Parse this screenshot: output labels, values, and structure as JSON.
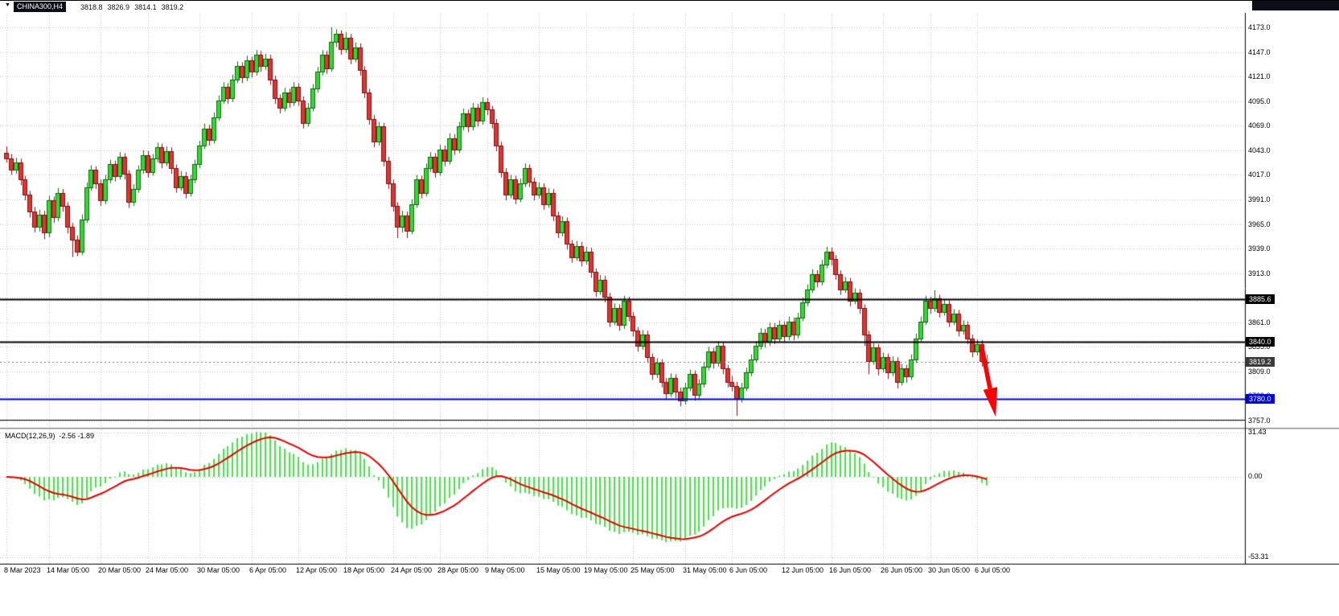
{
  "header": {
    "symbol": "CHINA300,H4",
    "open": "3818.8",
    "high": "3826.9",
    "low": "3814.1",
    "close": "3819.2"
  },
  "colors": {
    "bull": "#33d833",
    "bull_border": "#156415",
    "bear": "#df3434",
    "bear_border": "#801111",
    "grid": "#c9c9c9",
    "hist": "#44e544",
    "signal": "#e30000",
    "arrow": "#ff0000",
    "blue_line": "#0000d8",
    "black_line": "#000000",
    "bid_line": "#777777",
    "bid_badge": "#3a3a3a"
  },
  "chart_data": {
    "type": "candlestick",
    "symbol": "CHINA300",
    "timeframe": "H4",
    "title": "CHINA300,H4 3818.8 3826.9 3814.1 3819.2",
    "ylim": [
      3748,
      4188
    ],
    "price_axis": {
      "labels": [
        "4173.0",
        "4147.0",
        "4121.0",
        "4095.0",
        "4069.0",
        "4043.0",
        "4017.0",
        "3991.0",
        "3965.0",
        "3939.0",
        "3913.0",
        "3887.0",
        "3861.0",
        "3835.0",
        "3809.0",
        "3783.0",
        "3757.0"
      ]
    },
    "x_ticks": [
      {
        "i": 0,
        "label": "8 Mar 2023"
      },
      {
        "i": 9,
        "label": "14 Mar 05:00"
      },
      {
        "i": 20,
        "label": "20 Mar 05:00"
      },
      {
        "i": 30,
        "label": "24 Mar 05:00"
      },
      {
        "i": 41,
        "label": "30 Mar 05:00"
      },
      {
        "i": 52,
        "label": "6 Apr 05:00"
      },
      {
        "i": 62,
        "label": "12 Apr 05:00"
      },
      {
        "i": 72,
        "label": "18 Apr 05:00"
      },
      {
        "i": 82,
        "label": "24 Apr 05:00"
      },
      {
        "i": 92,
        "label": "28 Apr 05:00"
      },
      {
        "i": 102,
        "label": "9 May 05:00"
      },
      {
        "i": 113,
        "label": "15 May 05:00"
      },
      {
        "i": 123,
        "label": "19 May 05:00"
      },
      {
        "i": 133,
        "label": "25 May 05:00"
      },
      {
        "i": 144,
        "label": "31 May 05:00"
      },
      {
        "i": 154,
        "label": "6 Jun 05:00"
      },
      {
        "i": 165,
        "label": "12 Jun 05:00"
      },
      {
        "i": 175,
        "label": "16 Jun 05:00"
      },
      {
        "i": 186,
        "label": "26 Jun 05:00"
      },
      {
        "i": 196,
        "label": "30 Jun 05:00"
      },
      {
        "i": 206,
        "label": "6 Jul 05:00"
      }
    ],
    "hlines": [
      {
        "price": 3885.6,
        "label": "3885.6",
        "color": "#000000",
        "width": 2,
        "style": "solid",
        "badge_bg": "#000000"
      },
      {
        "price": 3840.0,
        "label": "3840.0",
        "color": "#000000",
        "width": 2,
        "style": "solid",
        "badge_bg": "#000000"
      },
      {
        "price": 3819.2,
        "label": "3819.2",
        "color": "#777777",
        "width": 1,
        "style": "dashed",
        "badge_bg": "#3a3a3a"
      },
      {
        "price": 3780.0,
        "label": "3780.0",
        "color": "#0000d8",
        "width": 2,
        "style": "solid",
        "badge_bg": "#0000d8"
      },
      {
        "price": 3758.0,
        "label": "",
        "color": "#000000",
        "width": 1,
        "style": "solid",
        "badge_bg": ""
      }
    ],
    "macd": {
      "label": "MACD(12,26,9)",
      "values_label": "-2.56 -1.89",
      "params": [
        12,
        26,
        9
      ],
      "axis_labels": [
        "31.43",
        "0.00",
        "-53.31"
      ]
    },
    "candles": [
      [
        4040,
        4047,
        4030,
        4034
      ],
      [
        4034,
        4039,
        4017,
        4022
      ],
      [
        4022,
        4035,
        4018,
        4030
      ],
      [
        4030,
        4034,
        4006,
        4012
      ],
      [
        4012,
        4016,
        3990,
        3996
      ],
      [
        3996,
        4000,
        3972,
        3978
      ],
      [
        3978,
        3983,
        3956,
        3962
      ],
      [
        3962,
        3980,
        3957,
        3975
      ],
      [
        3975,
        3979,
        3949,
        3956
      ],
      [
        3956,
        3995,
        3951,
        3990
      ],
      [
        3990,
        3994,
        3966,
        3972
      ],
      [
        3972,
        4003,
        3968,
        3998
      ],
      [
        3998,
        4002,
        3978,
        3984
      ],
      [
        3984,
        3988,
        3955,
        3962
      ],
      [
        3962,
        3966,
        3930,
        3948
      ],
      [
        3948,
        3953,
        3931,
        3936
      ],
      [
        3936,
        3975,
        3932,
        3970
      ],
      [
        3970,
        4009,
        3966,
        4004
      ],
      [
        4004,
        4027,
        4000,
        4022
      ],
      [
        4022,
        4026,
        4002,
        4008
      ],
      [
        4008,
        4012,
        3984,
        3990
      ],
      [
        3990,
        4017,
        3986,
        4012
      ],
      [
        4012,
        4033,
        4008,
        4028
      ],
      [
        4028,
        4032,
        4010,
        4016
      ],
      [
        4016,
        4041,
        4012,
        4036
      ],
      [
        4036,
        4040,
        4012,
        4018
      ],
      [
        4018,
        4022,
        3982,
        3988
      ],
      [
        3988,
        4007,
        3984,
        4002
      ],
      [
        4002,
        4027,
        3998,
        4022
      ],
      [
        4022,
        4043,
        4018,
        4038
      ],
      [
        4038,
        4042,
        4014,
        4020
      ],
      [
        4020,
        4039,
        4016,
        4034
      ],
      [
        4034,
        4051,
        4030,
        4046
      ],
      [
        4046,
        4050,
        4024,
        4030
      ],
      [
        4030,
        4047,
        4026,
        4042
      ],
      [
        4042,
        4046,
        4018,
        4024
      ],
      [
        4024,
        4028,
        3998,
        4004
      ],
      [
        4004,
        4021,
        4000,
        4016
      ],
      [
        4016,
        4020,
        3992,
        3998
      ],
      [
        3998,
        4017,
        3994,
        4012
      ],
      [
        4012,
        4033,
        4008,
        4028
      ],
      [
        4028,
        4053,
        4024,
        4048
      ],
      [
        4048,
        4071,
        4044,
        4066
      ],
      [
        4066,
        4070,
        4048,
        4054
      ],
      [
        4054,
        4083,
        4050,
        4078
      ],
      [
        4078,
        4101,
        4074,
        4096
      ],
      [
        4096,
        4115,
        4092,
        4110
      ],
      [
        4110,
        4114,
        4092,
        4098
      ],
      [
        4098,
        4123,
        4094,
        4118
      ],
      [
        4118,
        4137,
        4114,
        4132
      ],
      [
        4132,
        4136,
        4114,
        4120
      ],
      [
        4120,
        4143,
        4116,
        4138
      ],
      [
        4138,
        4142,
        4120,
        4126
      ],
      [
        4126,
        4149,
        4122,
        4144
      ],
      [
        4144,
        4148,
        4126,
        4132
      ],
      [
        4132,
        4145,
        4128,
        4140
      ],
      [
        4140,
        4144,
        4112,
        4118
      ],
      [
        4118,
        4122,
        4092,
        4098
      ],
      [
        4098,
        4102,
        4082,
        4088
      ],
      [
        4088,
        4109,
        4084,
        4104
      ],
      [
        4104,
        4108,
        4088,
        4094
      ],
      [
        4094,
        4115,
        4090,
        4110
      ],
      [
        4110,
        4114,
        4090,
        4096
      ],
      [
        4096,
        4100,
        4066,
        4072
      ],
      [
        4072,
        4093,
        4068,
        4088
      ],
      [
        4088,
        4113,
        4084,
        4108
      ],
      [
        4108,
        4131,
        4104,
        4126
      ],
      [
        4126,
        4149,
        4122,
        4144
      ],
      [
        4144,
        4148,
        4124,
        4130
      ],
      [
        4130,
        4173,
        4126,
        4158
      ],
      [
        4158,
        4171,
        4152,
        4166
      ],
      [
        4166,
        4170,
        4144,
        4150
      ],
      [
        4150,
        4168,
        4146,
        4162
      ],
      [
        4162,
        4166,
        4134,
        4140
      ],
      [
        4140,
        4157,
        4136,
        4152
      ],
      [
        4152,
        4156,
        4122,
        4128
      ],
      [
        4128,
        4132,
        4098,
        4104
      ],
      [
        4104,
        4108,
        4070,
        4076
      ],
      [
        4076,
        4080,
        4046,
        4052
      ],
      [
        4052,
        4073,
        4048,
        4068
      ],
      [
        4068,
        4072,
        4026,
        4032
      ],
      [
        4032,
        4036,
        4002,
        4008
      ],
      [
        4008,
        4012,
        3978,
        3984
      ],
      [
        3984,
        3988,
        3950,
        3962
      ],
      [
        3962,
        3979,
        3956,
        3974
      ],
      [
        3974,
        3978,
        3950,
        3958
      ],
      [
        3958,
        3991,
        3954,
        3986
      ],
      [
        3986,
        4017,
        3982,
        4012
      ],
      [
        4012,
        4016,
        3992,
        3998
      ],
      [
        3998,
        4029,
        3994,
        4024
      ],
      [
        4024,
        4041,
        4020,
        4036
      ],
      [
        4036,
        4040,
        4014,
        4020
      ],
      [
        4020,
        4049,
        4016,
        4044
      ],
      [
        4044,
        4048,
        4026,
        4032
      ],
      [
        4032,
        4061,
        4028,
        4056
      ],
      [
        4056,
        4060,
        4038,
        4044
      ],
      [
        4044,
        4073,
        4040,
        4068
      ],
      [
        4068,
        4087,
        4064,
        4082
      ],
      [
        4082,
        4086,
        4062,
        4068
      ],
      [
        4068,
        4093,
        4064,
        4088
      ],
      [
        4088,
        4092,
        4068,
        4074
      ],
      [
        4074,
        4099,
        4070,
        4094
      ],
      [
        4094,
        4098,
        4080,
        4086
      ],
      [
        4086,
        4090,
        4066,
        4072
      ],
      [
        4072,
        4076,
        4042,
        4048
      ],
      [
        4048,
        4052,
        4014,
        4020
      ],
      [
        4020,
        4024,
        3990,
        3996
      ],
      [
        3996,
        4017,
        3992,
        4012
      ],
      [
        4012,
        4016,
        3986,
        3992
      ],
      [
        3992,
        4013,
        3988,
        4008
      ],
      [
        4008,
        4029,
        4004,
        4024
      ],
      [
        4024,
        4028,
        4004,
        4010
      ],
      [
        4010,
        4014,
        3990,
        3996
      ],
      [
        3996,
        4009,
        3992,
        4004
      ],
      [
        4004,
        4008,
        3980,
        3986
      ],
      [
        3986,
        4003,
        3982,
        3998
      ],
      [
        3998,
        4002,
        3968,
        3974
      ],
      [
        3974,
        3978,
        3950,
        3956
      ],
      [
        3956,
        3973,
        3952,
        3968
      ],
      [
        3968,
        3972,
        3938,
        3944
      ],
      [
        3944,
        3948,
        3924,
        3930
      ],
      [
        3930,
        3947,
        3926,
        3942
      ],
      [
        3942,
        3946,
        3920,
        3926
      ],
      [
        3926,
        3941,
        3922,
        3936
      ],
      [
        3936,
        3940,
        3908,
        3914
      ],
      [
        3914,
        3918,
        3888,
        3894
      ],
      [
        3894,
        3911,
        3890,
        3906
      ],
      [
        3906,
        3910,
        3882,
        3888
      ],
      [
        3888,
        3892,
        3856,
        3862
      ],
      [
        3862,
        3881,
        3858,
        3876
      ],
      [
        3876,
        3880,
        3852,
        3858
      ],
      [
        3858,
        3889,
        3854,
        3884
      ],
      [
        3884,
        3888,
        3862,
        3868
      ],
      [
        3868,
        3872,
        3846,
        3852
      ],
      [
        3852,
        3856,
        3830,
        3836
      ],
      [
        3836,
        3853,
        3832,
        3848
      ],
      [
        3848,
        3852,
        3818,
        3824
      ],
      [
        3824,
        3828,
        3800,
        3806
      ],
      [
        3806,
        3823,
        3802,
        3818
      ],
      [
        3818,
        3822,
        3792,
        3798
      ],
      [
        3798,
        3802,
        3779,
        3786
      ],
      [
        3786,
        3807,
        3782,
        3802
      ],
      [
        3802,
        3806,
        3781,
        3788
      ],
      [
        3788,
        3792,
        3772,
        3778
      ],
      [
        3778,
        3797,
        3774,
        3792
      ],
      [
        3792,
        3811,
        3788,
        3806
      ],
      [
        3806,
        3810,
        3778,
        3784
      ],
      [
        3784,
        3801,
        3780,
        3796
      ],
      [
        3796,
        3819,
        3792,
        3814
      ],
      [
        3814,
        3835,
        3810,
        3830
      ],
      [
        3830,
        3834,
        3812,
        3818
      ],
      [
        3818,
        3841,
        3814,
        3836
      ],
      [
        3836,
        3840,
        3806,
        3812
      ],
      [
        3812,
        3816,
        3792,
        3798
      ],
      [
        3798,
        3804,
        3788,
        3794
      ],
      [
        3794,
        3798,
        3762,
        3780
      ],
      [
        3780,
        3797,
        3776,
        3792
      ],
      [
        3792,
        3813,
        3788,
        3808
      ],
      [
        3808,
        3827,
        3804,
        3822
      ],
      [
        3822,
        3841,
        3818,
        3836
      ],
      [
        3836,
        3855,
        3832,
        3850
      ],
      [
        3850,
        3854,
        3834,
        3840
      ],
      [
        3840,
        3861,
        3836,
        3856
      ],
      [
        3856,
        3860,
        3838,
        3844
      ],
      [
        3844,
        3863,
        3840,
        3858
      ],
      [
        3858,
        3862,
        3840,
        3846
      ],
      [
        3846,
        3867,
        3842,
        3862
      ],
      [
        3862,
        3866,
        3842,
        3848
      ],
      [
        3848,
        3871,
        3844,
        3866
      ],
      [
        3866,
        3887,
        3862,
        3882
      ],
      [
        3882,
        3901,
        3878,
        3896
      ],
      [
        3896,
        3917,
        3892,
        3912
      ],
      [
        3912,
        3916,
        3898,
        3904
      ],
      [
        3904,
        3927,
        3900,
        3922
      ],
      [
        3922,
        3941,
        3918,
        3936
      ],
      [
        3936,
        3940,
        3921,
        3928
      ],
      [
        3928,
        3932,
        3906,
        3912
      ],
      [
        3912,
        3916,
        3890,
        3896
      ],
      [
        3896,
        3909,
        3892,
        3904
      ],
      [
        3904,
        3908,
        3878,
        3884
      ],
      [
        3884,
        3897,
        3880,
        3892
      ],
      [
        3892,
        3896,
        3870,
        3876
      ],
      [
        3876,
        3880,
        3836,
        3848
      ],
      [
        3848,
        3852,
        3806,
        3820
      ],
      [
        3820,
        3839,
        3816,
        3834
      ],
      [
        3834,
        3838,
        3805,
        3812
      ],
      [
        3812,
        3829,
        3808,
        3824
      ],
      [
        3824,
        3828,
        3801,
        3808
      ],
      [
        3808,
        3825,
        3804,
        3820
      ],
      [
        3820,
        3824,
        3791,
        3798
      ],
      [
        3798,
        3817,
        3794,
        3812
      ],
      [
        3812,
        3816,
        3797,
        3804
      ],
      [
        3804,
        3827,
        3800,
        3822
      ],
      [
        3822,
        3849,
        3818,
        3844
      ],
      [
        3844,
        3867,
        3840,
        3862
      ],
      [
        3862,
        3889,
        3858,
        3884
      ],
      [
        3884,
        3888,
        3870,
        3876
      ],
      [
        3876,
        3895,
        3872,
        3886
      ],
      [
        3886,
        3890,
        3866,
        3872
      ],
      [
        3872,
        3885,
        3868,
        3880
      ],
      [
        3880,
        3884,
        3856,
        3862
      ],
      [
        3862,
        3875,
        3858,
        3870
      ],
      [
        3870,
        3874,
        3846,
        3852
      ],
      [
        3852,
        3863,
        3848,
        3858
      ],
      [
        3858,
        3862,
        3838,
        3844
      ],
      [
        3844,
        3848,
        3824,
        3830
      ],
      [
        3830,
        3843,
        3826,
        3838
      ],
      [
        3838,
        3842,
        3814,
        3820
      ],
      [
        3818.8,
        3826.9,
        3814.1,
        3819.2
      ]
    ],
    "arrow": {
      "from_price": 3838,
      "to_price": 3760,
      "color": "#ff0000"
    }
  }
}
